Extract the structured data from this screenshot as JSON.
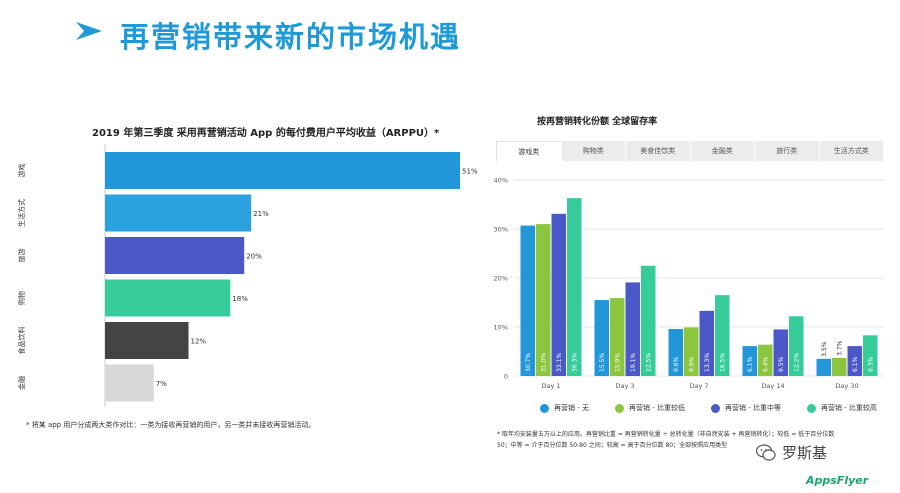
{
  "header": {
    "title": "再营销带来新的市场机遇"
  },
  "left": {
    "title": "2019 年第三季度 采用再营销活动 App 的每付费用户平均收益（ARPPU）*",
    "note": "* 将某 app 用户分成两大类作对比：一类为接收再营销的用户，另一类并未接收再营销活动。",
    "chart_data": {
      "type": "bar",
      "orientation": "horizontal",
      "title": "2019 年第三季度 采用再营销活动 App 的每付费用户平均收益（ARPPU）*",
      "categories": [
        "游戏",
        "生活方式",
        "旅游",
        "购物",
        "食品饮料",
        "金融"
      ],
      "values": [
        51,
        21,
        20,
        18,
        12,
        7
      ],
      "value_labels": [
        "51%",
        "21%",
        "20%",
        "18%",
        "12%",
        "7%"
      ],
      "colors": [
        "#2196d8",
        "#2ba1e0",
        "#4a58c8",
        "#36cc9a",
        "#444444",
        "#d8d8d8"
      ],
      "xlim": [
        0,
        51
      ]
    }
  },
  "right": {
    "title": "按再营销转化份额 全球留存率",
    "tabs": [
      "游戏类",
      "购物类",
      "美食佳饮类",
      "金融类",
      "旅行类",
      "生活方式类"
    ],
    "legend": [
      "再营销 - 无",
      "再营销 - 比重较低",
      "再营销 - 比重中等",
      "再营销 - 比重较高"
    ],
    "note_line1": "* 取年均安装量五万以上的应用。再营销比重 = 再营销转化量 ÷ 总转化量（非自然安装 + 再营销转化）；较低 = 低于百分位数",
    "note_line2": "50；中等 = 介于百分位数 50-80 之间；较高 = 高于百分位数 80；全部按照应用类型",
    "chart_data": {
      "type": "bar",
      "title": "按再营销转化份额 全球留存率",
      "categories": [
        "Day 1",
        "Day 3",
        "Day 7",
        "Day 14",
        "Day 30"
      ],
      "y_ticks": [
        "0",
        "10%",
        "20%",
        "30%",
        "40%"
      ],
      "ylim": [
        0,
        40
      ],
      "grid": true,
      "legend_position": "bottom",
      "series": [
        {
          "name": "再营销 - 无",
          "color": "#2196d8",
          "values": [
            30.7,
            15.5,
            9.6,
            6.1,
            3.5
          ],
          "labels": [
            "30.7%",
            "15.5%",
            "9.6%",
            "6.1%",
            "3.5%"
          ]
        },
        {
          "name": "再营销 - 比重较低",
          "color": "#8cc63f",
          "values": [
            31.0,
            15.9,
            9.9,
            6.4,
            3.7
          ],
          "labels": [
            "31.0%",
            "15.9%",
            "9.9%",
            "6.4%",
            "3.7%"
          ]
        },
        {
          "name": "再营销 - 比重中等",
          "color": "#4a58c8",
          "values": [
            33.1,
            19.1,
            13.3,
            9.5,
            6.1
          ],
          "labels": [
            "33.1%",
            "19.1%",
            "13.3%",
            "9.5%",
            "6.1%"
          ]
        },
        {
          "name": "再营销 - 比重较高",
          "color": "#36cc9a",
          "values": [
            36.3,
            22.5,
            16.5,
            12.2,
            8.3
          ],
          "labels": [
            "36.3%",
            "22.5%",
            "16.5%",
            "12.2%",
            "8.3%"
          ]
        }
      ]
    }
  },
  "watermark": "罗斯基",
  "brand": "AppsFlyer",
  "colors": {
    "title_blue": "#1f9ad6",
    "grid": "#e6e6e6"
  }
}
